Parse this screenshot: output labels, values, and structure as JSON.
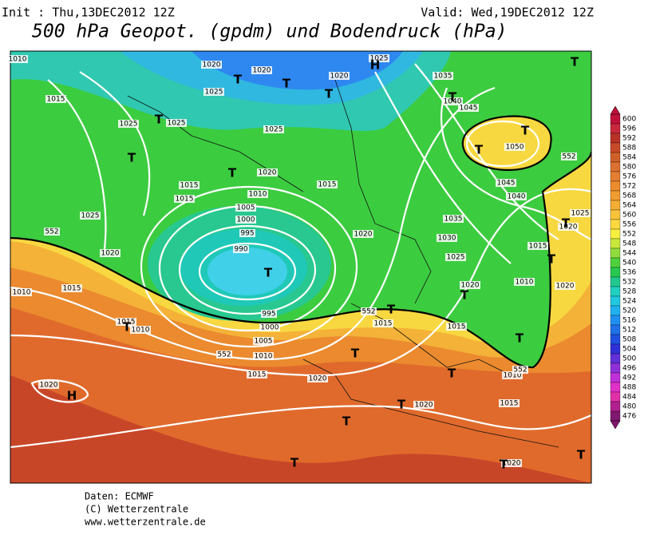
{
  "header": {
    "init": "Init : Thu,13DEC2012 12Z",
    "valid": "Valid: Wed,19DEC2012 12Z",
    "title": "500 hPa Geopot. (gpdm) und Bodendruck (hPa)"
  },
  "pressure_labels": [
    "1010",
    "1020",
    "1020",
    "1025",
    "1020",
    "1035",
    "1015",
    "1025",
    "1040",
    "1045",
    "1025",
    "1025",
    "1025",
    "1050",
    "1015",
    "1015",
    "1020",
    "1015",
    "1010",
    "1005",
    "1000",
    "995",
    "990",
    "1045",
    "1040",
    "1025",
    "1035",
    "1030",
    "1020",
    "1025",
    "1020",
    "1015",
    "1010",
    "1020",
    "1010",
    "1015",
    "1020",
    "995",
    "1000",
    "1005",
    "1010",
    "1015",
    "1010",
    "1015",
    "1015",
    "1015",
    "1020",
    "1020",
    "1010",
    "1015",
    "1020",
    "1020",
    "1025",
    "1020",
    "552",
    "552",
    "552",
    "552",
    "552"
  ],
  "centers": [
    "H",
    "H",
    "T",
    "T",
    "T",
    "T",
    "T",
    "T",
    "T",
    "T",
    "T",
    "T",
    "T",
    "T",
    "T",
    "T",
    "T",
    "T",
    "T",
    "T",
    "T",
    "T",
    "T",
    "T",
    "T",
    "T"
  ],
  "colorbar": {
    "levels": [
      600,
      596,
      592,
      588,
      584,
      580,
      576,
      572,
      568,
      564,
      560,
      556,
      552,
      548,
      544,
      540,
      536,
      532,
      528,
      524,
      520,
      516,
      512,
      508,
      504,
      500,
      496,
      492,
      488,
      484,
      480,
      476
    ],
    "colors": [
      "#c0103c",
      "#c8283c",
      "#b83228",
      "#c84a28",
      "#d0602a",
      "#dc7030",
      "#e47e30",
      "#ec8c2c",
      "#f09c30",
      "#f4ae34",
      "#f8c43c",
      "#fcd840",
      "#f8f040",
      "#c8e83c",
      "#90dc3c",
      "#50d03c",
      "#28c850",
      "#20c890",
      "#20d0c0",
      "#20c8e0",
      "#20b0f0",
      "#2090f0",
      "#2070e8",
      "#2050e0",
      "#3030d8",
      "#6030d8",
      "#9030d8",
      "#c030d8",
      "#e030c8",
      "#e030a8",
      "#b02090",
      "#801870"
    ]
  },
  "footer": [
    "Daten: ECMWF",
    "(C) Wetterzentrale",
    "www.wetterzentrale.de"
  ]
}
